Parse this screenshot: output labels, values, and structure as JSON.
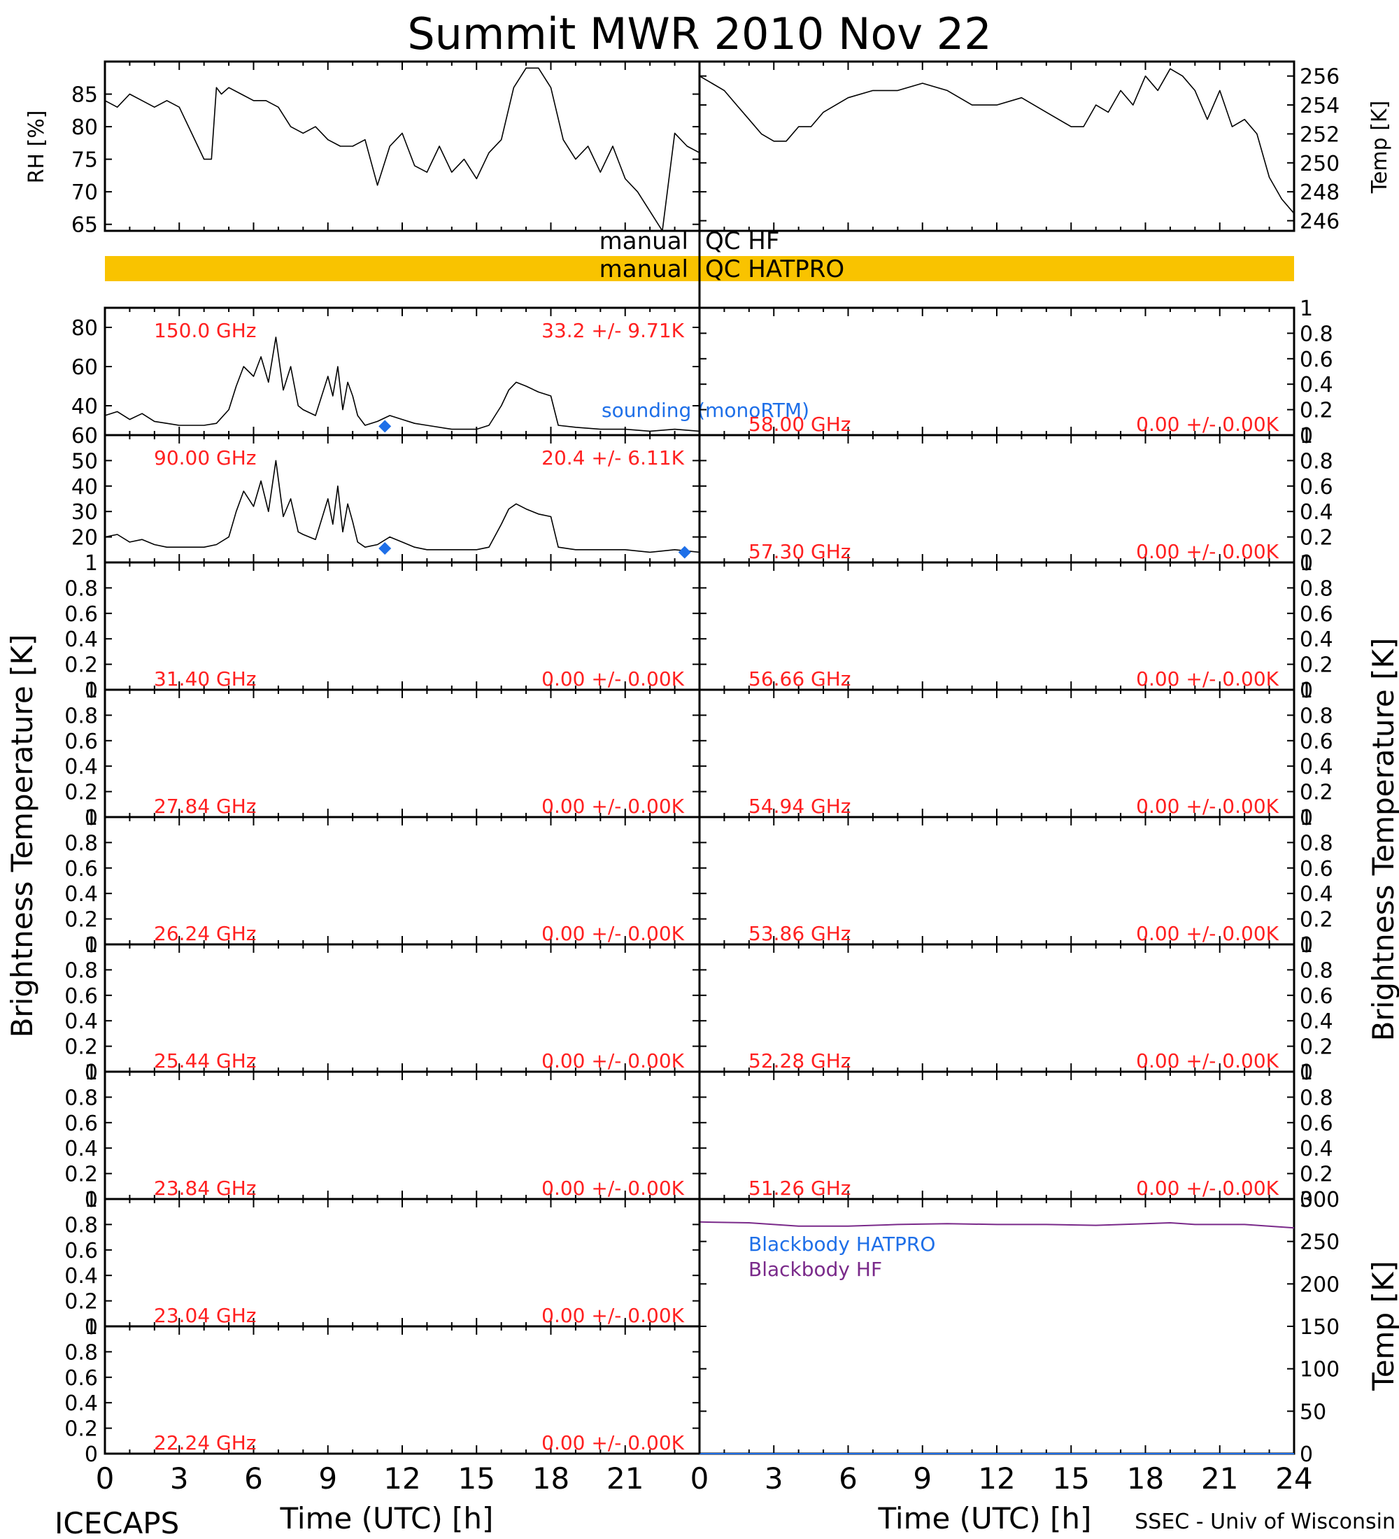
{
  "title": "Summit MWR 2010 Nov 22",
  "footer_left": "ICECAPS",
  "footer_right": "SSEC - Univ of Wisconsin",
  "x_axis_label": "Time (UTC) [h]",
  "bt_axis_label": "Brightness Temperature [K]",
  "colors": {
    "red": "#ff2020",
    "blue": "#1e6fe8",
    "purple": "#7a2a8a",
    "qc_bar": "#f9c300",
    "trace": "#000000"
  },
  "chart_data": {
    "met_panels": [
      {
        "type": "line",
        "side": "left",
        "ylabel": "RH [%]",
        "ylim": [
          64,
          90
        ],
        "yticks": [
          65,
          70,
          75,
          80,
          85
        ],
        "xlim": [
          0,
          24
        ],
        "series": [
          {
            "x": [
              0,
              0.5,
              1,
              1.5,
              2,
              2.5,
              3,
              3.5,
              4,
              4.3,
              4.5,
              4.7,
              5,
              5.5,
              6,
              6.5,
              7,
              7.5,
              8,
              8.5,
              9,
              9.5,
              10,
              10.5,
              11,
              11.5,
              12,
              12.5,
              13,
              13.5,
              14,
              14.5,
              15,
              15.5,
              16,
              16.5,
              17,
              17.5,
              18,
              18.5,
              19,
              19.5,
              20,
              20.5,
              21,
              21.5,
              22,
              22.5,
              23,
              23.5,
              24
            ],
            "values": [
              84,
              83,
              85,
              84,
              83,
              84,
              83,
              79,
              75,
              75,
              86,
              85,
              86,
              85,
              84,
              84,
              83,
              80,
              79,
              80,
              78,
              77,
              77,
              78,
              71,
              77,
              79,
              74,
              73,
              77,
              73,
              75,
              72,
              76,
              78,
              86,
              89,
              89,
              86,
              78,
              75,
              77,
              73,
              77,
              72,
              70,
              67,
              64,
              79,
              77,
              76
            ]
          }
        ]
      },
      {
        "type": "line",
        "side": "right",
        "ylabel": "Temp [K]",
        "ylim": [
          245.3,
          257
        ],
        "yticks": [
          246,
          248,
          250,
          252,
          254,
          256
        ],
        "xlim": [
          0,
          24
        ],
        "series": [
          {
            "x": [
              0,
              0.5,
              1,
              1.5,
              2,
              2.5,
              3,
              3.5,
              4,
              4.5,
              5,
              5.5,
              6,
              7,
              8,
              9,
              10,
              11,
              12,
              13,
              14,
              15,
              15.5,
              16,
              16.5,
              17,
              17.5,
              18,
              18.5,
              19,
              19.5,
              20,
              20.5,
              21,
              21.5,
              22,
              22.5,
              23,
              23.5,
              24
            ],
            "values": [
              256,
              255.5,
              255,
              254,
              253,
              252,
              251.5,
              251.5,
              252.5,
              252.5,
              253.5,
              254,
              254.5,
              255,
              255,
              255.5,
              255,
              254,
              254,
              254.5,
              253.5,
              252.5,
              252.5,
              254,
              253.5,
              255,
              254,
              256,
              255,
              256.5,
              256,
              255,
              253,
              255,
              252.5,
              253,
              252,
              249,
              247.5,
              246.5
            ]
          }
        ]
      }
    ],
    "qc": [
      {
        "label_left": "manual",
        "label_right": "QC HF",
        "flagged": false
      },
      {
        "label_left": "manual",
        "label_right": "QC HATPRO",
        "flagged": true
      }
    ],
    "bt_panels_left": [
      {
        "freq": "150.0 GHz",
        "stats": "33.2 +/-  9.71K",
        "ylim": [
          25,
          90
        ],
        "yticks": [
          40,
          60,
          80
        ],
        "has_data": true,
        "x": [
          0,
          0.5,
          1,
          1.5,
          2,
          2.5,
          3,
          3.5,
          4,
          4.5,
          5,
          5.3,
          5.6,
          6,
          6.3,
          6.6,
          6.9,
          7.2,
          7.5,
          7.8,
          8,
          8.5,
          9,
          9.2,
          9.4,
          9.6,
          9.8,
          10,
          10.2,
          10.5,
          11,
          11.5,
          12,
          12.5,
          13,
          14,
          15,
          15.5,
          16,
          16.3,
          16.6,
          17,
          17.5,
          18,
          18.3,
          19,
          20,
          21,
          22,
          23,
          24
        ],
        "values": [
          35,
          37,
          33,
          36,
          32,
          31,
          30,
          30,
          30,
          31,
          38,
          50,
          60,
          55,
          65,
          52,
          75,
          48,
          60,
          40,
          38,
          35,
          55,
          45,
          60,
          38,
          52,
          45,
          35,
          30,
          32,
          35,
          33,
          31,
          30,
          28,
          28,
          30,
          40,
          48,
          52,
          50,
          47,
          45,
          30,
          29,
          28,
          28,
          27,
          28,
          27
        ],
        "soundings": [
          [
            11.3,
            29.5
          ]
        ],
        "sounding_label": "sounding (monoRTM)"
      },
      {
        "freq": "90.00 GHz",
        "stats": "20.4 +/-  6.11K",
        "ylim": [
          10,
          60
        ],
        "yticks": [
          20,
          30,
          40,
          50,
          60
        ],
        "has_data": true,
        "x": [
          0,
          0.5,
          1,
          1.5,
          2,
          2.5,
          3,
          3.5,
          4,
          4.5,
          5,
          5.3,
          5.6,
          6,
          6.3,
          6.6,
          6.9,
          7.2,
          7.5,
          7.8,
          8,
          8.5,
          9,
          9.2,
          9.4,
          9.6,
          9.8,
          10,
          10.2,
          10.5,
          11,
          11.5,
          12,
          12.5,
          13,
          14,
          15,
          15.5,
          16,
          16.3,
          16.6,
          17,
          17.5,
          18,
          18.3,
          19,
          20,
          21,
          22,
          23,
          24
        ],
        "values": [
          20,
          21,
          18,
          19,
          17,
          16,
          16,
          16,
          16,
          17,
          20,
          30,
          38,
          32,
          42,
          30,
          50,
          28,
          35,
          22,
          21,
          19,
          35,
          25,
          40,
          22,
          33,
          26,
          18,
          16,
          17,
          20,
          18,
          16,
          15,
          15,
          15,
          16,
          25,
          31,
          33,
          31,
          29,
          28,
          16,
          15,
          15,
          15,
          14,
          15,
          14
        ],
        "soundings": [
          [
            11.3,
            15.5
          ],
          [
            23.4,
            14
          ]
        ]
      },
      {
        "freq": "31.40 GHz",
        "stats": "0.00 +/-  0.00K",
        "ylim": [
          0,
          1
        ],
        "yticks": [
          0.0,
          0.2,
          0.4,
          0.6,
          0.8,
          1.0
        ],
        "has_data": false
      },
      {
        "freq": "27.84 GHz",
        "stats": "0.00 +/-  0.00K",
        "ylim": [
          0,
          1
        ],
        "yticks": [
          0.0,
          0.2,
          0.4,
          0.6,
          0.8,
          1.0
        ],
        "has_data": false
      },
      {
        "freq": "26.24 GHz",
        "stats": "0.00 +/-  0.00K",
        "ylim": [
          0,
          1
        ],
        "yticks": [
          0.0,
          0.2,
          0.4,
          0.6,
          0.8,
          1.0
        ],
        "has_data": false
      },
      {
        "freq": "25.44 GHz",
        "stats": "0.00 +/-  0.00K",
        "ylim": [
          0,
          1
        ],
        "yticks": [
          0.0,
          0.2,
          0.4,
          0.6,
          0.8,
          1.0
        ],
        "has_data": false
      },
      {
        "freq": "23.84 GHz",
        "stats": "0.00 +/-  0.00K",
        "ylim": [
          0,
          1
        ],
        "yticks": [
          0.0,
          0.2,
          0.4,
          0.6,
          0.8,
          1.0
        ],
        "has_data": false
      },
      {
        "freq": "23.04 GHz",
        "stats": "0.00 +/-  0.00K",
        "ylim": [
          0,
          1
        ],
        "yticks": [
          0.0,
          0.2,
          0.4,
          0.6,
          0.8,
          1.0
        ],
        "has_data": false
      },
      {
        "freq": "22.24 GHz",
        "stats": "0.00 +/-  0.00K",
        "ylim": [
          0,
          1
        ],
        "yticks": [
          0.0,
          0.2,
          0.4,
          0.6,
          0.8,
          1.0
        ],
        "has_data": false
      }
    ],
    "bt_panels_right": [
      {
        "freq": "58.00 GHz",
        "stats": "0.00 +/-  0.00K",
        "ylim": [
          0,
          1
        ],
        "yticks": [
          0.0,
          0.2,
          0.4,
          0.6,
          0.8,
          1.0
        ],
        "has_data": false
      },
      {
        "freq": "57.30 GHz",
        "stats": "0.00 +/-  0.00K",
        "ylim": [
          0,
          1
        ],
        "yticks": [
          0.0,
          0.2,
          0.4,
          0.6,
          0.8,
          1.0
        ],
        "has_data": false
      },
      {
        "freq": "56.66 GHz",
        "stats": "0.00 +/-  0.00K",
        "ylim": [
          0,
          1
        ],
        "yticks": [
          0.0,
          0.2,
          0.4,
          0.6,
          0.8,
          1.0
        ],
        "has_data": false
      },
      {
        "freq": "54.94 GHz",
        "stats": "0.00 +/-  0.00K",
        "ylim": [
          0,
          1
        ],
        "yticks": [
          0.0,
          0.2,
          0.4,
          0.6,
          0.8,
          1.0
        ],
        "has_data": false
      },
      {
        "freq": "53.86 GHz",
        "stats": "0.00 +/-  0.00K",
        "ylim": [
          0,
          1
        ],
        "yticks": [
          0.0,
          0.2,
          0.4,
          0.6,
          0.8,
          1.0
        ],
        "has_data": false
      },
      {
        "freq": "52.28 GHz",
        "stats": "0.00 +/-  0.00K",
        "ylim": [
          0,
          1
        ],
        "yticks": [
          0.0,
          0.2,
          0.4,
          0.6,
          0.8,
          1.0
        ],
        "has_data": false
      },
      {
        "freq": "51.26 GHz",
        "stats": "0.00 +/-  0.00K",
        "ylim": [
          0,
          1
        ],
        "yticks": [
          0.0,
          0.2,
          0.4,
          0.6,
          0.8,
          1.0
        ],
        "has_data": false
      }
    ],
    "blackbody_panel": {
      "type": "line",
      "ylabel": "Temp [K]",
      "ylim": [
        0,
        300
      ],
      "yticks": [
        0,
        50,
        100,
        150,
        200,
        250,
        300
      ],
      "xlim": [
        0,
        24
      ],
      "series": [
        {
          "name": "Blackbody HATPRO",
          "color": "#1e6fe8",
          "x": [
            0,
            24
          ],
          "values": [
            0,
            0
          ]
        },
        {
          "name": "Blackbody HF",
          "color": "#7a2a8a",
          "x": [
            0,
            2,
            4,
            6,
            8,
            10,
            12,
            14,
            16,
            18,
            19,
            20,
            22,
            24
          ],
          "values": [
            273,
            272,
            268,
            268,
            270,
            271,
            270,
            270,
            269,
            271,
            272,
            270,
            270,
            266
          ]
        }
      ]
    },
    "x_ticks": [
      0,
      3,
      6,
      9,
      12,
      15,
      18,
      21,
      24
    ],
    "x_tick_labels_left": [
      "0",
      "3",
      "6",
      "9",
      "12",
      "15",
      "18",
      "21"
    ],
    "x_tick_labels_right": [
      "0",
      "3",
      "6",
      "9",
      "12",
      "15",
      "18",
      "21",
      "24"
    ]
  }
}
